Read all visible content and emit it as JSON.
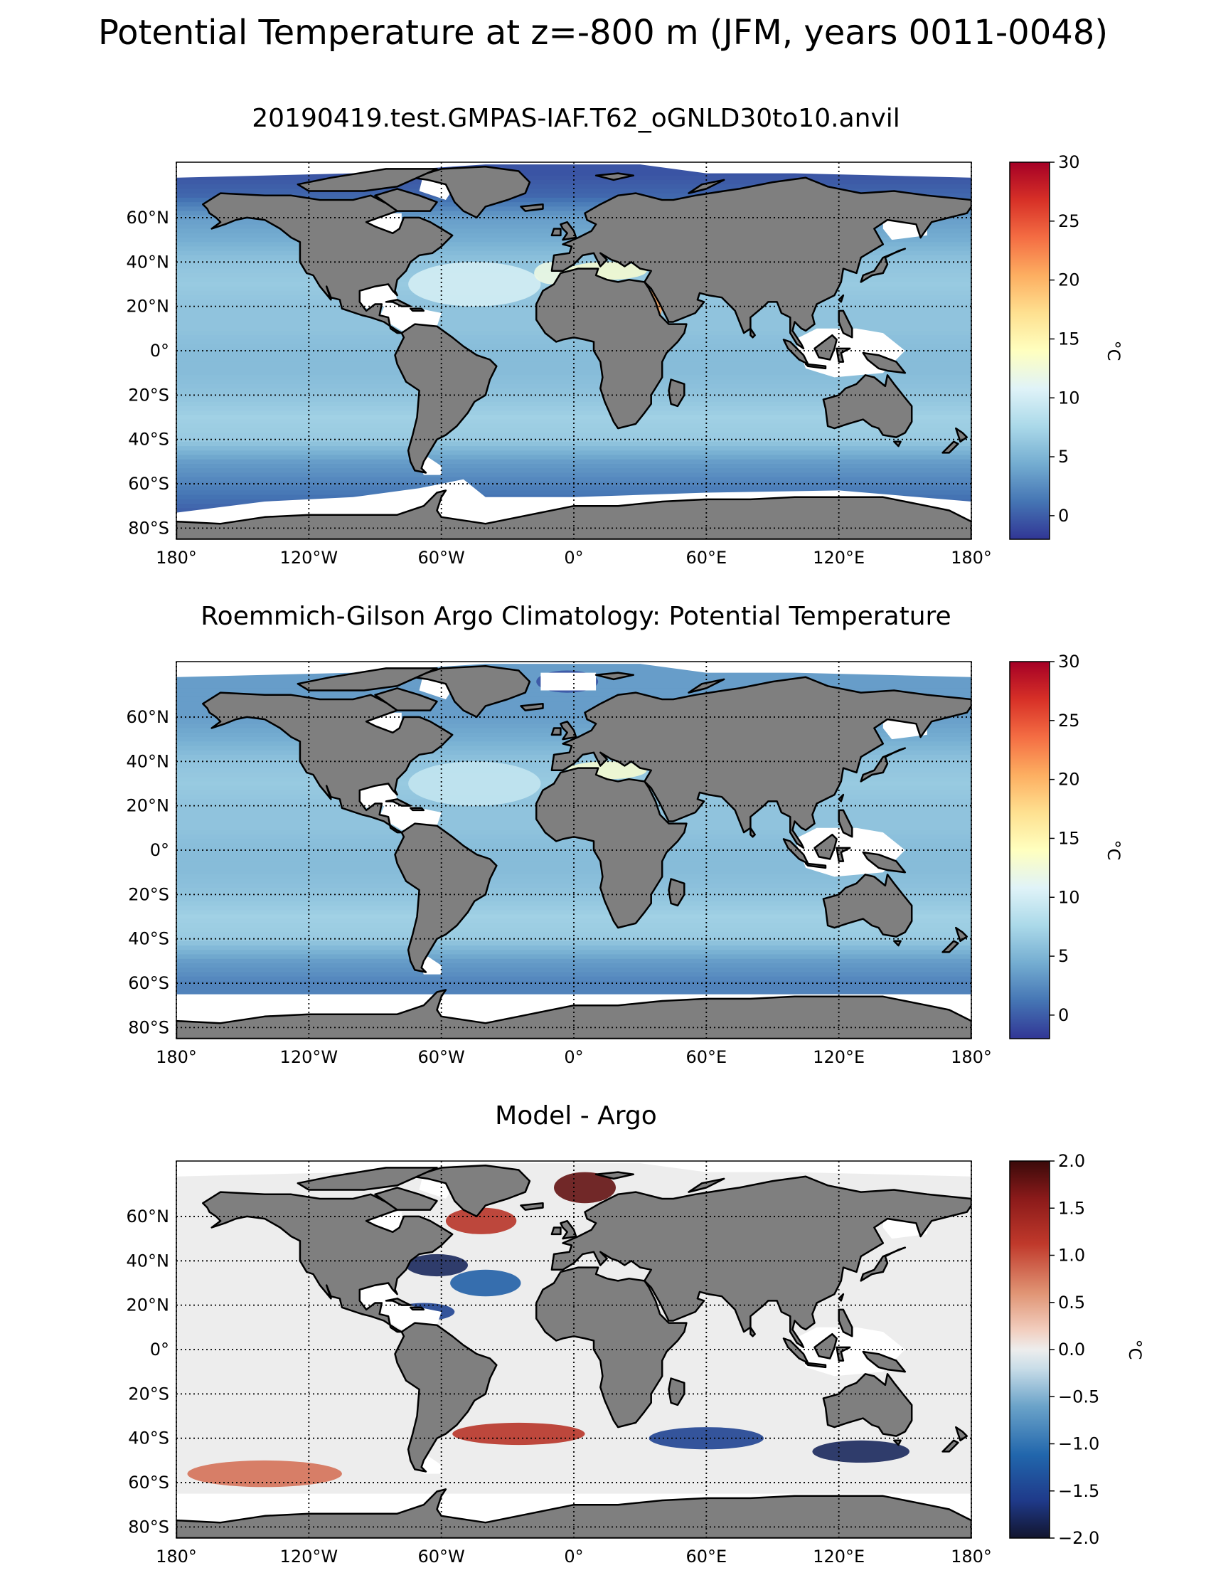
{
  "figure": {
    "title": "Potential Temperature at z=-800 m (JFM, years 0011-0048)"
  },
  "colors": {
    "land": "#7f7f7f",
    "missing": "#ffffff",
    "coast": "#000000",
    "grid": "#000000"
  },
  "chart_data": [
    {
      "type": "heatmap",
      "title": "20190419.test.GMPAS-IAF.T62_oGNLD30to10.anvil",
      "projection": "equirectangular map",
      "xlim": [
        -180,
        180
      ],
      "ylim": [
        -85,
        85
      ],
      "x_ticks": [
        -180,
        -120,
        -60,
        0,
        60,
        120,
        180
      ],
      "x_tick_labels": [
        "180°",
        "120°W",
        "60°W",
        "0°",
        "60°E",
        "120°E",
        "180°"
      ],
      "y_ticks": [
        60,
        40,
        20,
        0,
        -20,
        -40,
        -60,
        -80
      ],
      "y_tick_labels": [
        "60°N",
        "40°N",
        "20°N",
        "0°",
        "20°S",
        "40°S",
        "60°S",
        "80°S"
      ],
      "grid": true,
      "colormap": "RdYlBu_r",
      "colorbar": {
        "range": [
          -2,
          30
        ],
        "ticks": [
          0,
          5,
          10,
          15,
          20,
          25,
          30
        ],
        "tick_labels": [
          "0",
          "5",
          "10",
          "15",
          "20",
          "25",
          "30"
        ],
        "label": "°C"
      },
      "field_description": "cool (about 2 to 5) at high latitudes, warmer (8 to 11) in subtropical Atlantic and Indian oceans, Mediterranean about 13, Red Sea about 21",
      "zonal_mean_profile": {
        "lat": [
          80,
          70,
          60,
          50,
          40,
          30,
          20,
          10,
          0,
          -10,
          -20,
          -30,
          -40,
          -50,
          -60,
          -70,
          -80
        ],
        "value": [
          -0.5,
          0.5,
          3.5,
          4.5,
          6,
          6.5,
          6,
          6,
          5.5,
          5.5,
          6,
          7,
          6.5,
          3.5,
          2,
          0.5,
          -1
        ]
      },
      "features": [
        {
          "name": "mediterranean",
          "value": 13
        },
        {
          "name": "red-sea",
          "value": 21
        },
        {
          "name": "north-atlantic-subtropics",
          "value": 10
        },
        {
          "name": "gulf-of-cadiz",
          "value": 12
        }
      ]
    },
    {
      "type": "heatmap",
      "title": "Roemmich-Gilson Argo Climatology: Potential Temperature",
      "projection": "equirectangular map",
      "xlim": [
        -180,
        180
      ],
      "ylim": [
        -85,
        85
      ],
      "x_ticks": [
        -180,
        -120,
        -60,
        0,
        60,
        120,
        180
      ],
      "x_tick_labels": [
        "180°",
        "120°W",
        "60°W",
        "0°",
        "60°E",
        "120°E",
        "180°"
      ],
      "y_ticks": [
        60,
        40,
        20,
        0,
        -20,
        -40,
        -60,
        -80
      ],
      "y_tick_labels": [
        "60°N",
        "40°N",
        "20°N",
        "0°",
        "20°S",
        "40°S",
        "60°S",
        "80°S"
      ],
      "grid": true,
      "colormap": "RdYlBu_r",
      "colorbar": {
        "range": [
          -2,
          30
        ],
        "ticks": [
          0,
          5,
          10,
          15,
          20,
          25,
          30
        ],
        "tick_labels": [
          "0",
          "5",
          "10",
          "15",
          "20",
          "25",
          "30"
        ],
        "label": "°C"
      },
      "data_extent_lat": [
        -65,
        65
      ],
      "zonal_mean_profile": {
        "lat": [
          60,
          50,
          40,
          30,
          20,
          10,
          0,
          -10,
          -20,
          -30,
          -40,
          -50,
          -60
        ],
        "value": [
          3.5,
          4.5,
          6,
          6.5,
          6,
          6,
          5.5,
          5.5,
          6,
          7,
          6.5,
          3.5,
          2
        ]
      },
      "features": [
        {
          "name": "mediterranean",
          "value": 13
        },
        {
          "name": "nordic-seas",
          "value": -0.5
        },
        {
          "name": "north-atlantic-subtropics",
          "value": 9
        }
      ]
    },
    {
      "type": "heatmap",
      "title": "Model - Argo",
      "projection": "equirectangular map",
      "xlim": [
        -180,
        180
      ],
      "ylim": [
        -85,
        85
      ],
      "x_ticks": [
        -180,
        -120,
        -60,
        0,
        60,
        120,
        180
      ],
      "x_tick_labels": [
        "180°",
        "120°W",
        "60°W",
        "0°",
        "60°E",
        "120°E",
        "180°"
      ],
      "y_ticks": [
        60,
        40,
        20,
        0,
        -20,
        -40,
        -60,
        -80
      ],
      "y_tick_labels": [
        "60°N",
        "40°N",
        "20°N",
        "0°",
        "20°S",
        "40°S",
        "60°S",
        "80°S"
      ],
      "grid": true,
      "colormap": "RdBu_r",
      "colorbar": {
        "range": [
          -2,
          2
        ],
        "ticks": [
          2.0,
          1.5,
          1.0,
          0.5,
          0.0,
          -0.5,
          -1.0,
          -1.5,
          -2.0
        ],
        "tick_labels": [
          "2.0",
          "1.5",
          "1.0",
          "0.5",
          "0.0",
          "−0.5",
          "−1.0",
          "−1.5",
          "−2.0"
        ],
        "label": "°C"
      },
      "features": [
        {
          "name": "nordic-seas",
          "value": 1.8
        },
        {
          "name": "labrador-irminger",
          "value": 1.2
        },
        {
          "name": "gulf-stream",
          "value": -1.8
        },
        {
          "name": "north-atlantic-subtropics",
          "value": -1.2
        },
        {
          "name": "caribbean",
          "value": -1.5
        },
        {
          "name": "south-atlantic",
          "value": 1.2
        },
        {
          "name": "indian-ocean-south",
          "value": -1.5
        },
        {
          "name": "south-of-australia",
          "value": -1.8
        },
        {
          "name": "southern-ocean-pacific",
          "value": 0.8
        }
      ]
    }
  ]
}
